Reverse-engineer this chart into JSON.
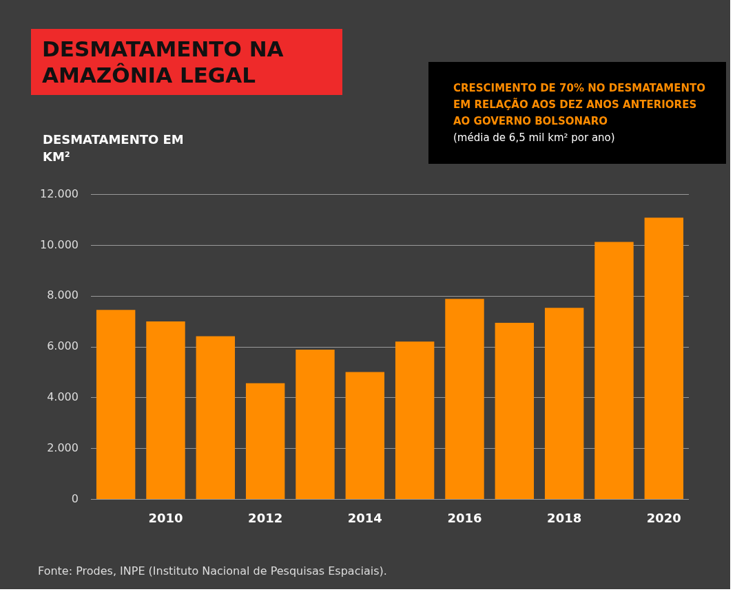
{
  "chart_data": {
    "type": "bar",
    "title": "DESMATAMENTO NA AMAZÔNIA LEGAL",
    "ylabel": "DESMATAMENTO EM KM²",
    "categories": [
      null,
      "2010",
      null,
      "2012",
      null,
      "2014",
      null,
      "2016",
      null,
      "2018",
      null,
      "2020"
    ],
    "values": [
      7460,
      7000,
      6420,
      4570,
      5890,
      5010,
      6210,
      7890,
      6950,
      7540,
      10130,
      11090
    ],
    "color": "#ff8c00",
    "ylim": [
      0,
      12000
    ],
    "yticks": [
      {
        "value": 0,
        "label": "0"
      },
      {
        "value": 2000,
        "label": "2.000"
      },
      {
        "value": 4000,
        "label": "4.000"
      },
      {
        "value": 6000,
        "label": "6.000"
      },
      {
        "value": 8000,
        "label": "8.000"
      },
      {
        "value": 10000,
        "label": "10.000"
      },
      {
        "value": 12000,
        "label": "12.000"
      }
    ],
    "grid": "y",
    "annotations": [
      "CRESCIMENTO DE 70% NO DESMATAMENTO EM RELAÇÃO AOS DEZ ANOS ANTERIORES AO GOVERNO BOLSONARO",
      "(média de 6,5 mil km² por ano)",
      "Fonte: Prodes, INPE (Instituto Nacional de Pesquisas Espaciais)."
    ]
  }
}
